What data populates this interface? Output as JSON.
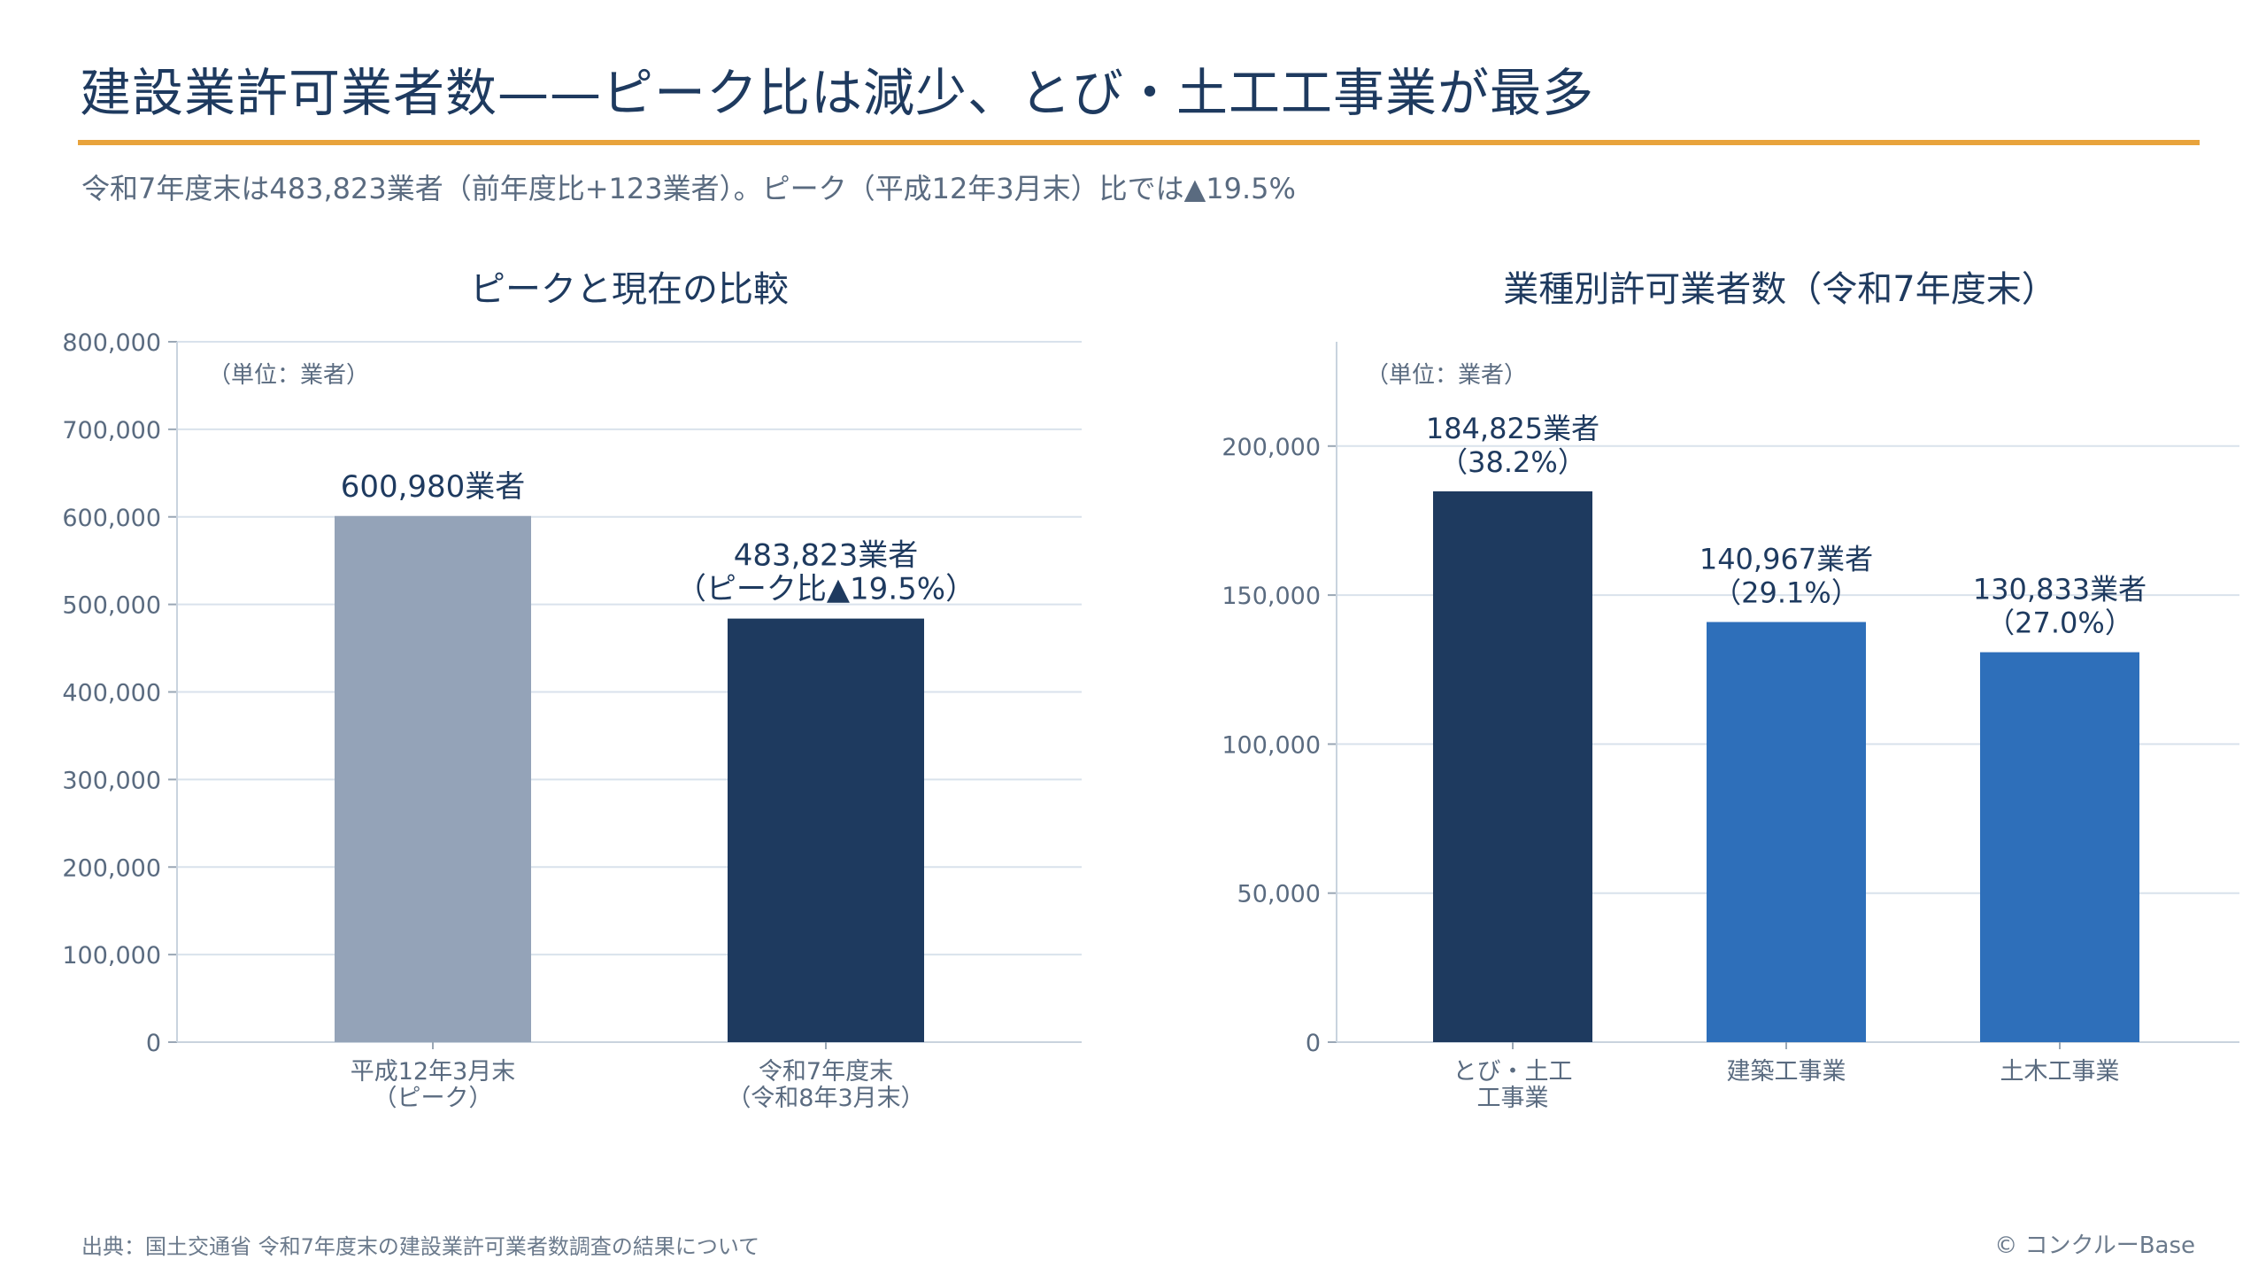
{
  "header": {
    "title": "建設業許可業者数——ピーク比は減少、とび・土工工事業が最多",
    "subtitle": "令和7年度末は483,823業者（前年度比+123業者）。ピーク（平成12年3月末）比では▲19.5%"
  },
  "footer": {
    "source": "出典：国土交通省 令和7年度末の建設業許可業者数調査の結果について",
    "copyright": "© コンクルーBase"
  },
  "colors": {
    "peak_bar": "#94a3b8",
    "dark_bar": "#1e3a5f",
    "blue_bar": "#2e6fba",
    "accent_rule": "#e8a33c",
    "grid": "#d9e2ec"
  },
  "chart_data": [
    {
      "type": "bar",
      "title": "ピークと現在の比較",
      "unit_note": "（単位：業者）",
      "categories": [
        [
          "平成12年3月末",
          "（ピーク）"
        ],
        [
          "令和7年度末",
          "（令和8年3月末）"
        ]
      ],
      "values": [
        600980,
        483823
      ],
      "data_labels": [
        [
          "600,980業者"
        ],
        [
          "483,823業者",
          "（ピーク比▲19.5%）"
        ]
      ],
      "bar_colors": [
        "#94a3b8",
        "#1e3a5f"
      ],
      "ylim": [
        0,
        800000
      ],
      "yticks": [
        0,
        100000,
        200000,
        300000,
        400000,
        500000,
        600000,
        700000,
        800000
      ],
      "ytick_labels": [
        "0",
        "100,000",
        "200,000",
        "300,000",
        "400,000",
        "500,000",
        "600,000",
        "700,000",
        "800,000"
      ],
      "grid": true
    },
    {
      "type": "bar",
      "title": "業種別許可業者数（令和7年度末）",
      "unit_note": "（単位：業者）",
      "categories": [
        [
          "とび・土工",
          "工事業"
        ],
        [
          "建築工事業"
        ],
        [
          "土木工事業"
        ]
      ],
      "values": [
        184825,
        140967,
        130833
      ],
      "data_labels": [
        [
          "184,825業者",
          "（38.2%）"
        ],
        [
          "140,967業者",
          "（29.1%）"
        ],
        [
          "130,833業者",
          "（27.0%）"
        ]
      ],
      "bar_colors": [
        "#1e3a5f",
        "#2e6fba",
        "#2e6fba"
      ],
      "ylim": [
        0,
        200000
      ],
      "yticks": [
        0,
        50000,
        100000,
        150000,
        200000
      ],
      "ytick_labels": [
        "0",
        "50,000",
        "100,000",
        "150,000",
        "200,000"
      ],
      "grid": true
    }
  ]
}
